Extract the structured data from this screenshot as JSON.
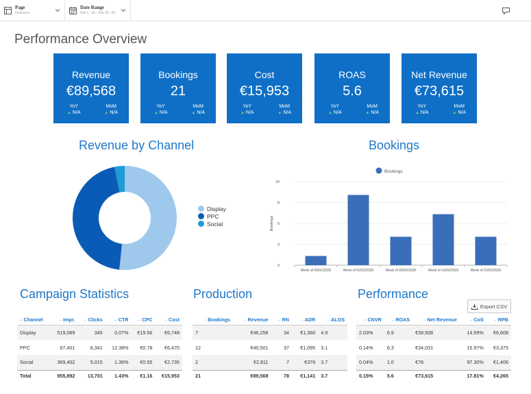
{
  "filters": {
    "page": {
      "label": "Page",
      "value": "Overview"
    },
    "date_range": {
      "label": "Date Range",
      "value": "Feb 1, '20 - Feb 28, '20"
    }
  },
  "title": "Performance Overview",
  "kpis": [
    {
      "title": "Revenue",
      "value": "€89,568",
      "yoy_label": "YoY",
      "yoy_value": "N/A",
      "mom_label": "MoM",
      "mom_value": "N/A"
    },
    {
      "title": "Bookings",
      "value": "21",
      "yoy_label": "YoY",
      "yoy_value": "N/A",
      "mom_label": "MoM",
      "mom_value": "N/A"
    },
    {
      "title": "Cost",
      "value": "€15,953",
      "yoy_label": "YoY",
      "yoy_value": "N/A",
      "mom_label": "MoM",
      "mom_value": "N/A"
    },
    {
      "title": "ROAS",
      "value": "5.6",
      "yoy_label": "YoY",
      "yoy_value": "N/A",
      "mom_label": "MoM",
      "mom_value": "N/A"
    },
    {
      "title": "Net Revenue",
      "value": "€73,615",
      "yoy_label": "YoY",
      "yoy_value": "N/A",
      "mom_label": "MoM",
      "mom_value": "N/A"
    }
  ],
  "sections": {
    "revenue_by_channel": "Revenue by Channel",
    "bookings": "Bookings",
    "campaign_statistics": "Campaign Statistics",
    "production": "Production",
    "performance": "Performance"
  },
  "colors": {
    "kpi_bg": "#0f6fc6",
    "accent": "#1f77c9",
    "bar": "#3b6eb8",
    "up": "#7fd36b"
  },
  "chart_data": [
    {
      "type": "pie",
      "title": "Revenue by Channel",
      "donut": true,
      "legend_position": "right",
      "series": [
        {
          "name": "Display",
          "value": 46256,
          "color": "#9ec9ec"
        },
        {
          "name": "PPC",
          "value": 40501,
          "color": "#0a5bb5"
        },
        {
          "name": "Social",
          "value": 2811,
          "color": "#1d9bd6"
        }
      ]
    },
    {
      "type": "bar",
      "title": "Bookings",
      "legend": [
        "Bookings"
      ],
      "legend_position": "top",
      "categories": [
        "Week of 26/01/2020",
        "Week of 02/02/2020",
        "Week of 09/02/2020",
        "Week of 16/02/2020",
        "Week of 23/02/2020"
      ],
      "series": [
        {
          "name": "Bookings",
          "values": [
            1.1,
            8.4,
            3.4,
            6.1,
            3.4
          ]
        }
      ],
      "xlabel": "",
      "ylabel": "Bookings",
      "ylim": [
        0,
        10
      ],
      "yticks": [
        "0",
        "3",
        "5",
        "8",
        "10"
      ],
      "ytick_values": [
        0,
        2.5,
        5,
        7.5,
        10
      ],
      "grid": true
    }
  ],
  "campaign": {
    "headers": [
      "Channel",
      "Impr.",
      "Clicks",
      "CTR",
      "CPC",
      "Cost"
    ],
    "rows": [
      [
        "Display",
        "519,089",
        "345",
        "0.07%",
        "€19.56",
        "€6,748"
      ],
      [
        "PPC",
        "67,401",
        "8,341",
        "12.38%",
        "€0.78",
        "€6,470"
      ],
      [
        "Social",
        "369,402",
        "5,015",
        "1.36%",
        "€0.55",
        "€2,735"
      ]
    ],
    "total": [
      "Total",
      "955,892",
      "13,701",
      "1.43%",
      "€1.16",
      "€15,953"
    ]
  },
  "production": {
    "headers": [
      "Bookings",
      "Revenue",
      "RN",
      "ADR",
      "ALOS"
    ],
    "rows": [
      [
        "7",
        "€46,256",
        "34",
        "€1,360",
        "4.9"
      ],
      [
        "12",
        "€40,501",
        "37",
        "€1,095",
        "3.1"
      ],
      [
        "2",
        "€2,811",
        "7",
        "€376",
        "3.7"
      ]
    ],
    "total": [
      "21",
      "€89,568",
      "78",
      "€1,141",
      "3.7"
    ]
  },
  "performance": {
    "headers": [
      "CNVR",
      "ROAS",
      "Net Revenue",
      "CoS",
      "RPB"
    ],
    "rows": [
      [
        "2.03%",
        "6.9",
        "€39,508",
        "14.59%",
        "€6,608"
      ],
      [
        "0.14%",
        "6.3",
        "€34,031",
        "15.97%",
        "€3,375"
      ],
      [
        "0.04%",
        "1.0",
        "€76",
        "97.30%",
        "€1,406"
      ]
    ],
    "total": [
      "0.15%",
      "5.6",
      "€73,615",
      "17.81%",
      "€4,265"
    ]
  },
  "export_label": "Export CSV",
  "icons": {
    "page": "page-icon",
    "calendar": "calendar-icon",
    "chevron": "chevron-down-icon",
    "comment": "comment-icon",
    "export": "download-icon",
    "sort": "sort-icon"
  }
}
